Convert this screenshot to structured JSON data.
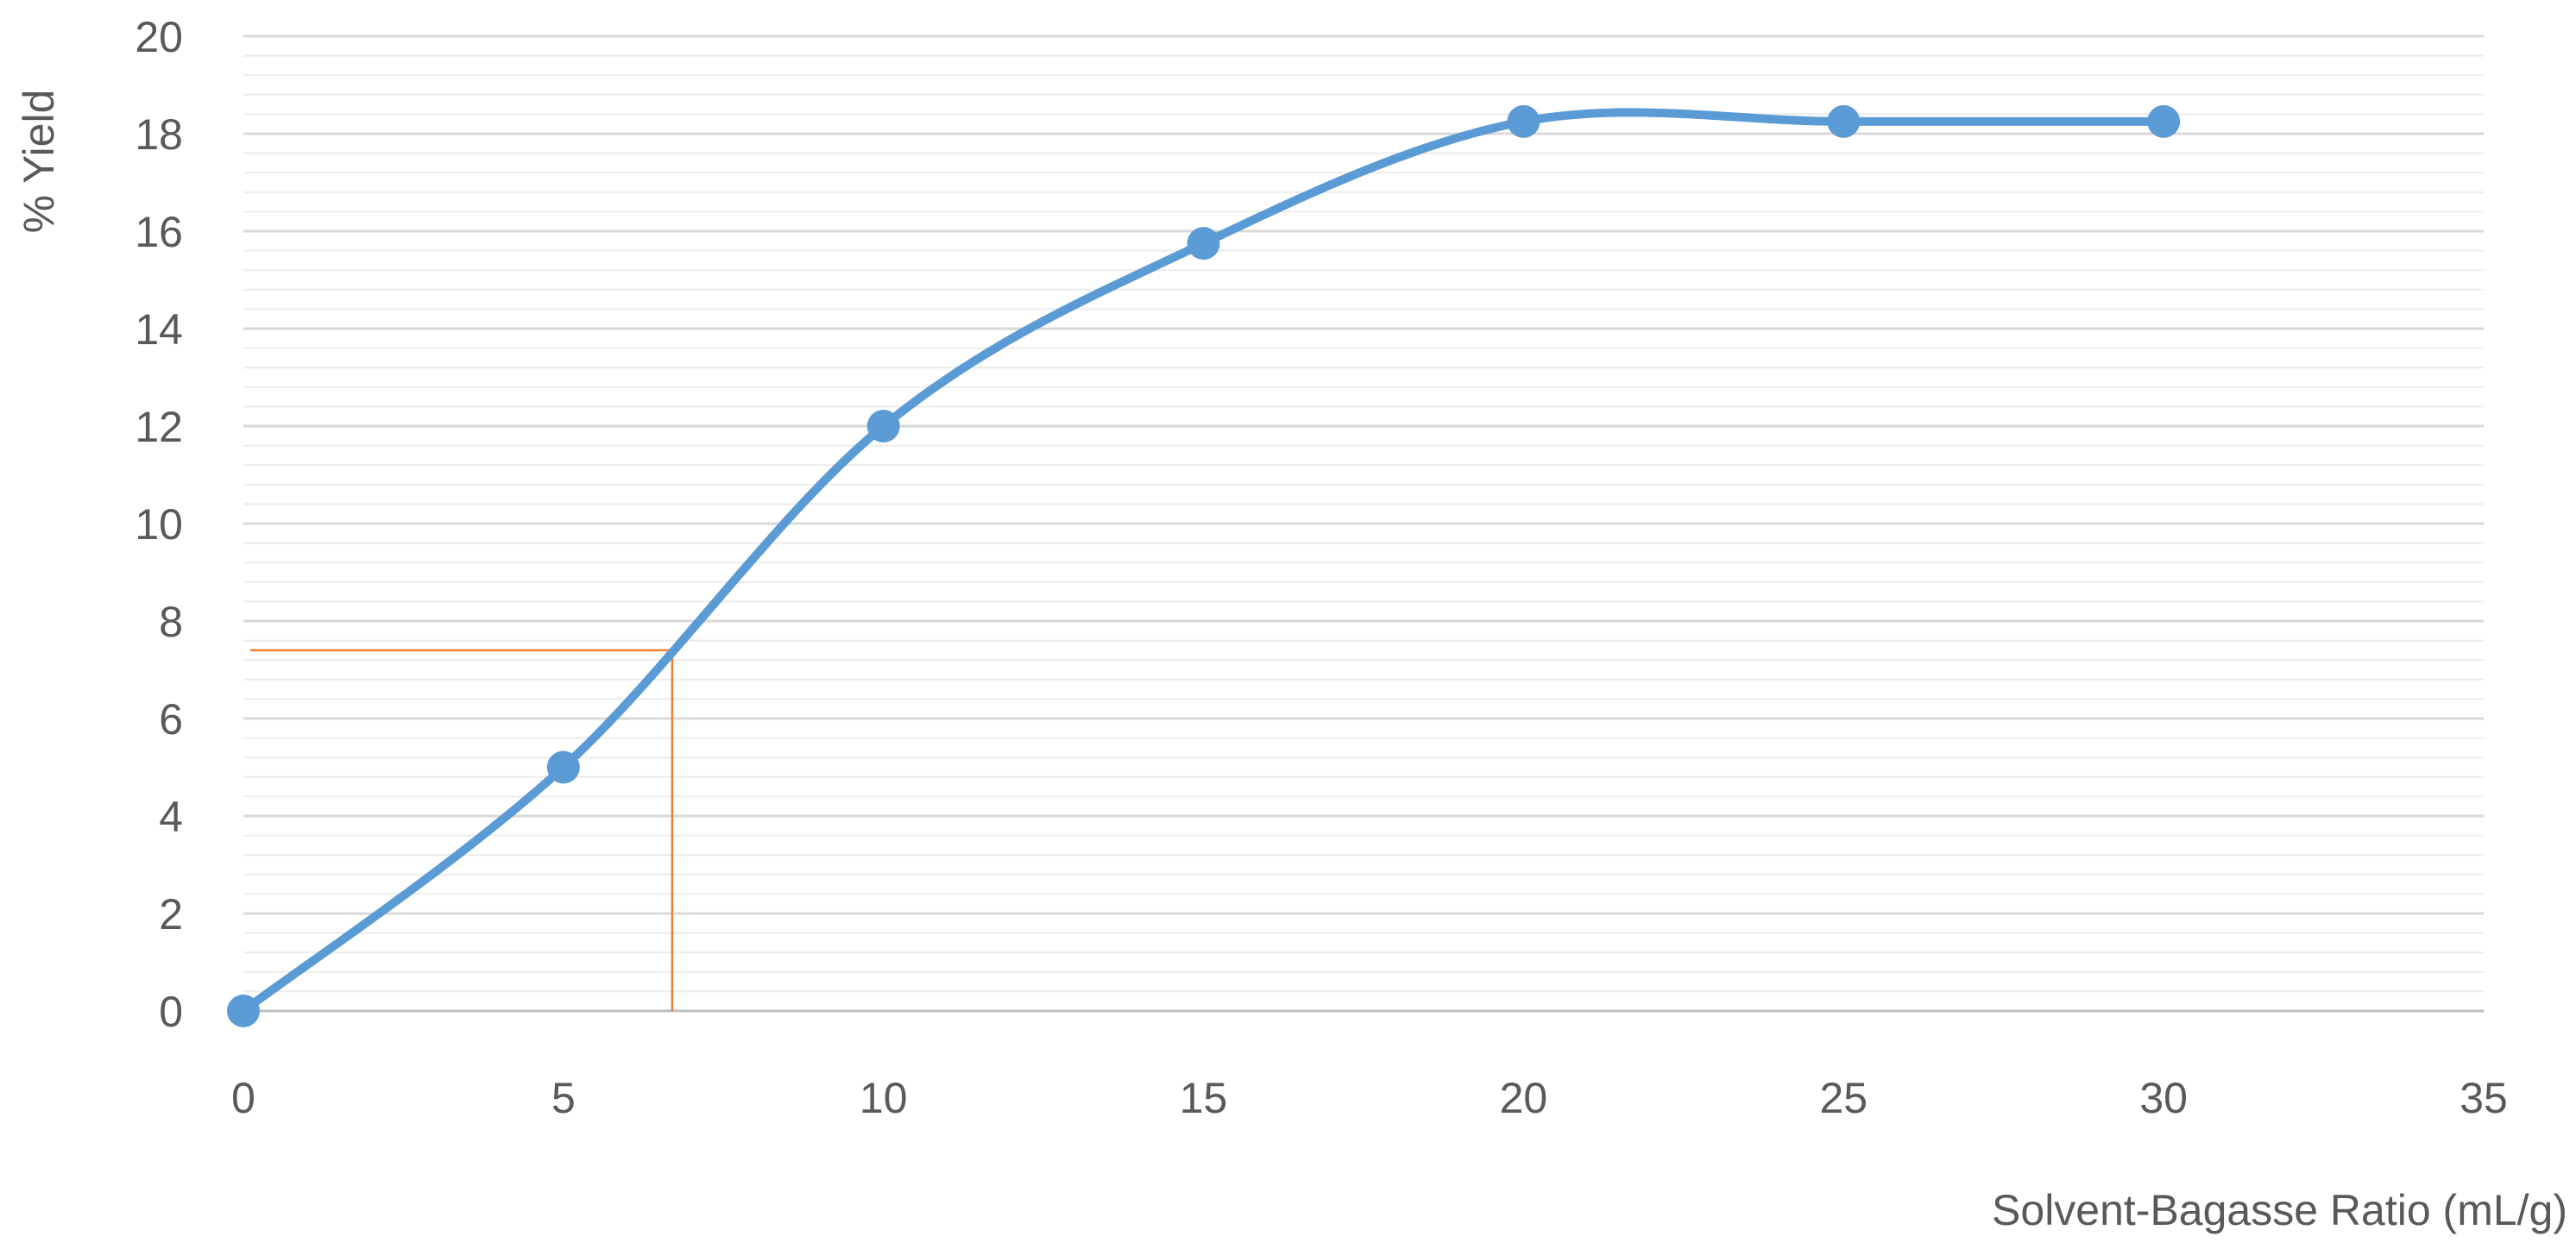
{
  "chart_data": {
    "type": "line",
    "title": "",
    "xlabel": "Solvent-Bagasse Ratio (mL/g)",
    "ylabel": "% Yield",
    "xlim": [
      0,
      35
    ],
    "ylim": [
      0,
      20
    ],
    "x_ticks": [
      0,
      5,
      10,
      15,
      20,
      25,
      30,
      35
    ],
    "y_ticks": [
      0,
      2,
      4,
      6,
      8,
      10,
      12,
      14,
      16,
      18,
      20
    ],
    "grid": true,
    "smooth": true,
    "series": [
      {
        "x": [
          0,
          5,
          10,
          15,
          20,
          25,
          30
        ],
        "y": [
          0,
          5.0,
          12.0,
          15.75,
          18.25,
          18.25,
          18.25
        ],
        "color": "#5B9BD5"
      }
    ],
    "annotations": [
      {
        "type": "reference-lines",
        "x": 6.7,
        "y": 7.4,
        "color": "#ED7D31"
      }
    ]
  }
}
